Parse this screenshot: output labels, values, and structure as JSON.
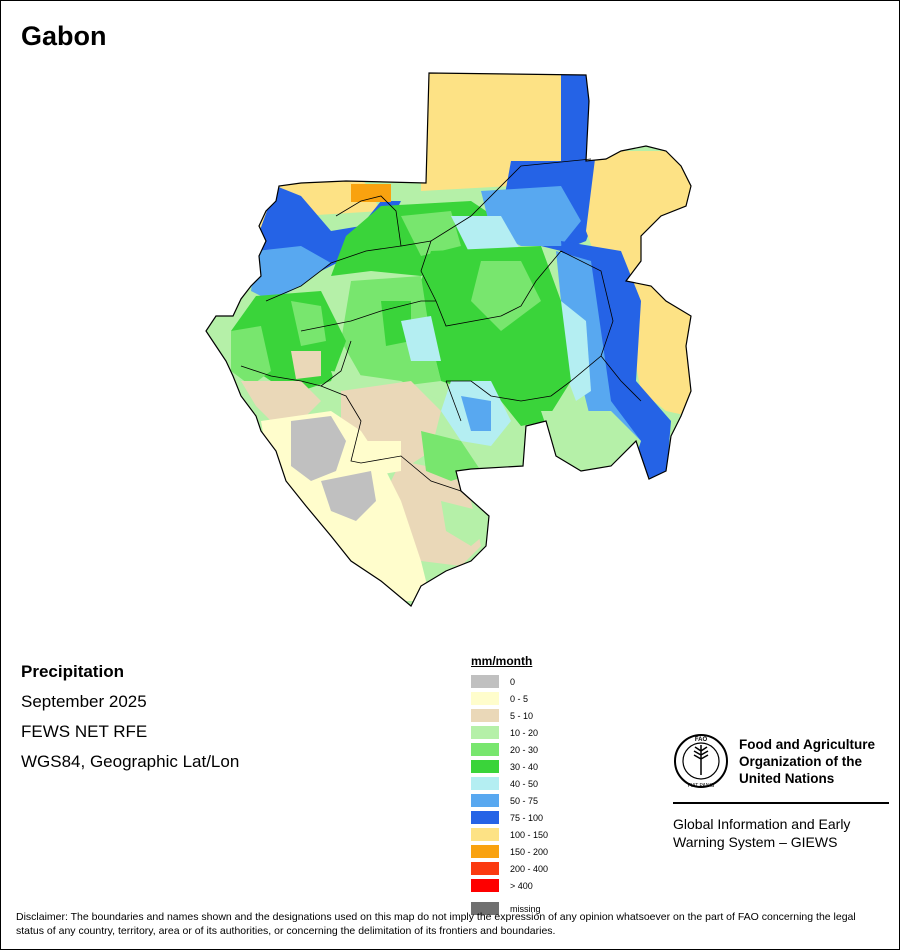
{
  "title": "Gabon",
  "info": {
    "variable": "Precipitation",
    "period": "September 2025",
    "source": "FEWS NET RFE",
    "projection": "WGS84, Geographic Lat/Lon"
  },
  "legend": {
    "title": "mm/month",
    "items": [
      {
        "label": "0",
        "color": "#c0c0c0"
      },
      {
        "label": "0 - 5",
        "color": "#fffdcc"
      },
      {
        "label": "5 - 10",
        "color": "#ead8b8"
      },
      {
        "label": "10 - 20",
        "color": "#b5f0a8"
      },
      {
        "label": "20 - 30",
        "color": "#78e66e"
      },
      {
        "label": "30 - 40",
        "color": "#3ad43a"
      },
      {
        "label": "40 - 50",
        "color": "#b4eef2"
      },
      {
        "label": "50 - 75",
        "color": "#58a8f0"
      },
      {
        "label": "75 - 100",
        "color": "#2563e6"
      },
      {
        "label": "100 - 150",
        "color": "#fde285"
      },
      {
        "label": "150 - 200",
        "color": "#f9a20f"
      },
      {
        "label": "200 - 400",
        "color": "#fb3a10"
      },
      {
        "label": "> 400",
        "color": "#fe0000"
      },
      {
        "label": "missing",
        "color": "#707070"
      }
    ]
  },
  "organization": {
    "name_line1": "Food and Agriculture",
    "name_line2": "Organization of the",
    "name_line3": "United Nations",
    "emblem_text": "FAO",
    "motto": "FIAT PANIS",
    "system_line1": "Global Information and Early",
    "system_line2": "Warning System – GIEWS"
  },
  "disclaimer": "Disclaimer: The boundaries and names shown and the designations used on this map do not imply the expression of any opinion whatsoever on the part of FAO concerning the legal status of any country, territory, area or of its authorities, or concerning the delimitation of its frontiers and boundaries."
}
